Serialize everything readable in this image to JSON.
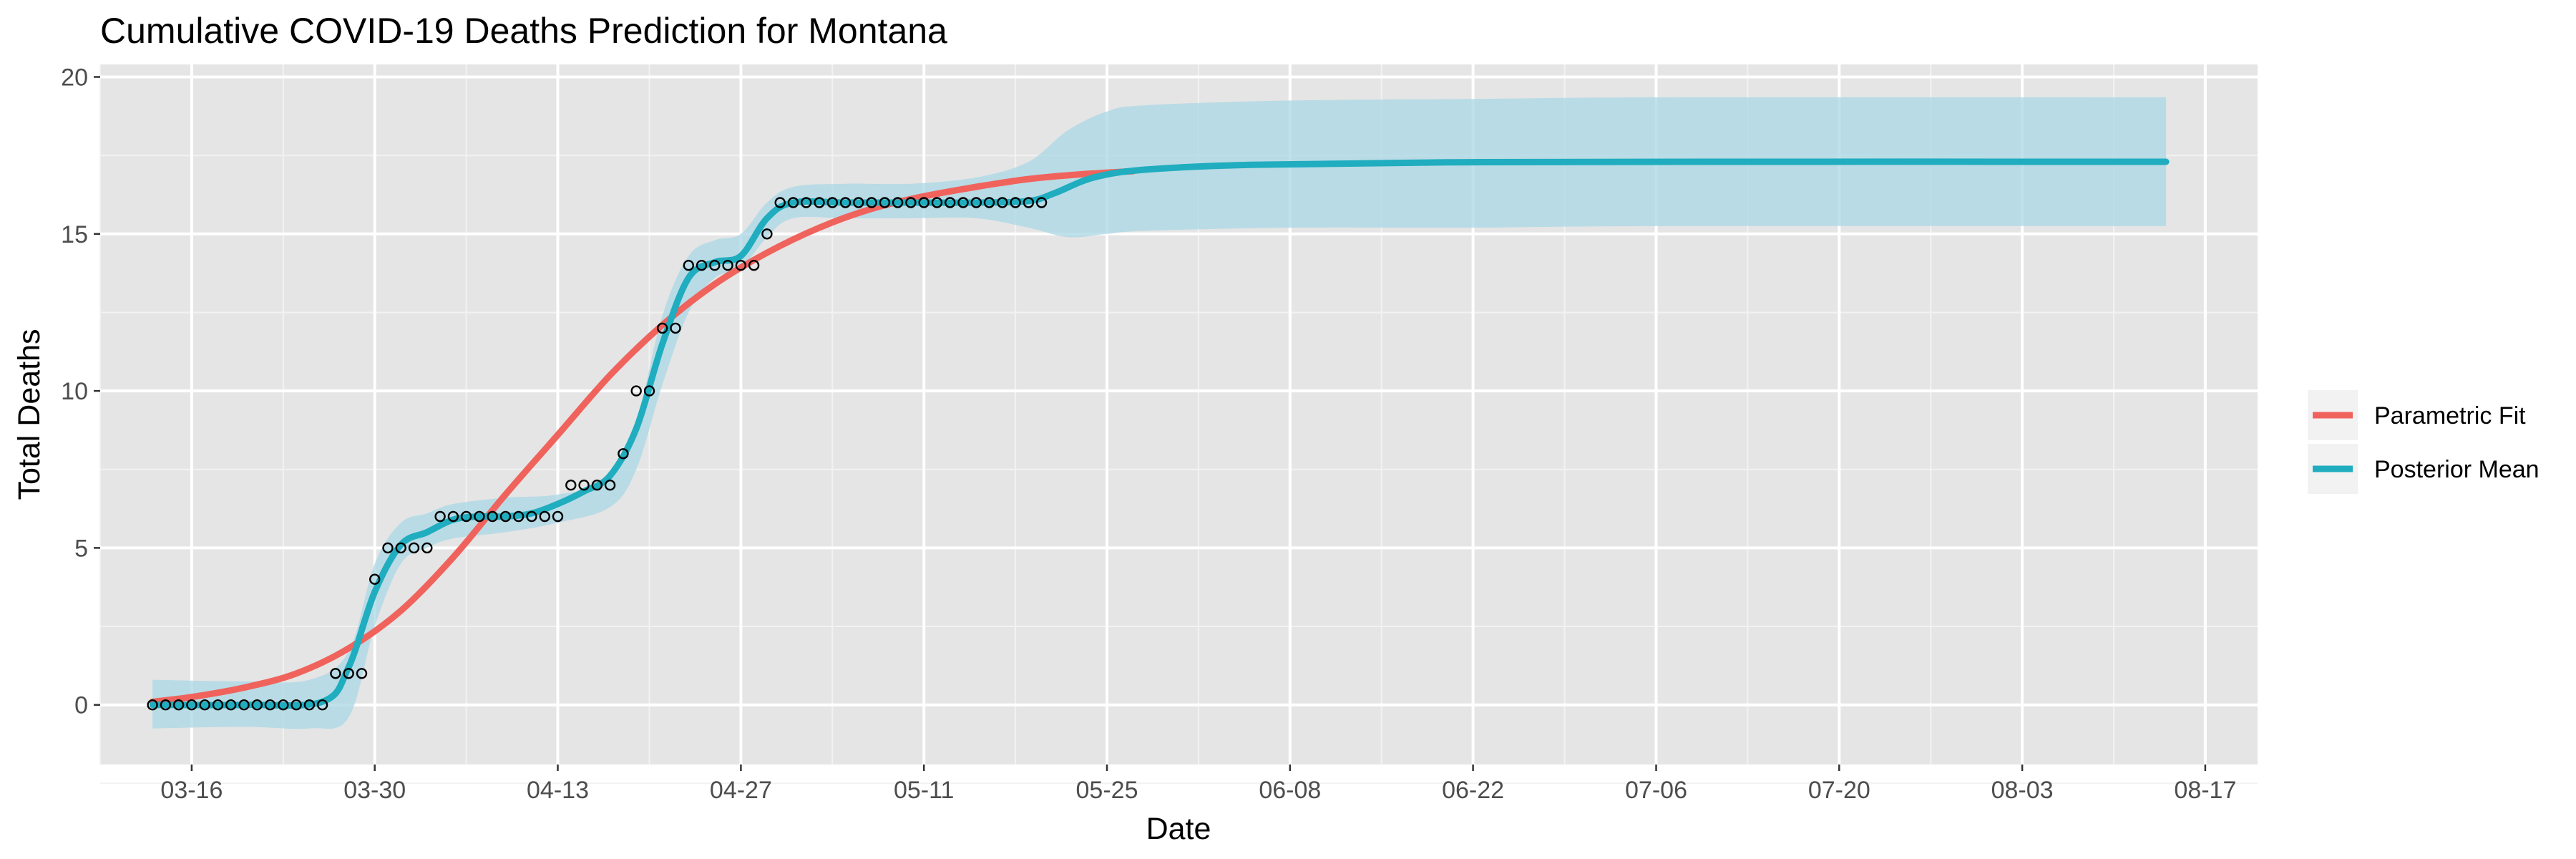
{
  "chart_data": {
    "type": "line",
    "title": "Cumulative COVID-19 Deaths Prediction for Montana",
    "xlabel": "Date",
    "ylabel": "Total Deaths",
    "x_type": "date",
    "x_ticks": [
      "2020-03-16",
      "2020-03-30",
      "2020-04-13",
      "2020-04-27",
      "2020-05-11",
      "2020-05-25",
      "2020-06-08",
      "2020-06-22",
      "2020-07-06",
      "2020-07-20",
      "2020-08-03",
      "2020-08-17"
    ],
    "x_tick_labels": [
      "03-16",
      "03-30",
      "04-13",
      "04-27",
      "05-11",
      "05-25",
      "06-08",
      "06-22",
      "07-06",
      "07-20",
      "08-03",
      "08-17"
    ],
    "xlim": [
      "2020-03-09",
      "2020-08-21"
    ],
    "y_ticks": [
      0,
      5,
      10,
      15,
      20
    ],
    "ylim": [
      -1.9,
      20.4
    ],
    "grid": true,
    "background_color": "#e5e5e5",
    "legend": {
      "position": "right",
      "entries": [
        {
          "label": "Parametric Fit",
          "color": "#f0635c"
        },
        {
          "label": "Posterior Mean",
          "color": "#1fadbf"
        }
      ]
    },
    "observed": {
      "x": [
        "2020-03-13",
        "2020-03-14",
        "2020-03-15",
        "2020-03-16",
        "2020-03-17",
        "2020-03-18",
        "2020-03-19",
        "2020-03-20",
        "2020-03-21",
        "2020-03-22",
        "2020-03-23",
        "2020-03-24",
        "2020-03-25",
        "2020-03-26",
        "2020-03-27",
        "2020-03-28",
        "2020-03-29",
        "2020-03-30",
        "2020-03-31",
        "2020-04-01",
        "2020-04-02",
        "2020-04-03",
        "2020-04-04",
        "2020-04-05",
        "2020-04-06",
        "2020-04-07",
        "2020-04-08",
        "2020-04-09",
        "2020-04-10",
        "2020-04-11",
        "2020-04-12",
        "2020-04-13",
        "2020-04-14",
        "2020-04-15",
        "2020-04-16",
        "2020-04-17",
        "2020-04-18",
        "2020-04-19",
        "2020-04-20",
        "2020-04-21",
        "2020-04-22",
        "2020-04-23",
        "2020-04-24",
        "2020-04-25",
        "2020-04-26",
        "2020-04-27",
        "2020-04-28",
        "2020-04-29",
        "2020-04-30",
        "2020-05-01",
        "2020-05-02",
        "2020-05-03",
        "2020-05-04",
        "2020-05-05",
        "2020-05-06",
        "2020-05-07",
        "2020-05-08",
        "2020-05-09",
        "2020-05-10",
        "2020-05-11",
        "2020-05-12",
        "2020-05-13",
        "2020-05-14",
        "2020-05-15",
        "2020-05-16",
        "2020-05-17",
        "2020-05-18",
        "2020-05-19",
        "2020-05-20"
      ],
      "y": [
        0,
        0,
        0,
        0,
        0,
        0,
        0,
        0,
        0,
        0,
        0,
        0,
        0,
        0,
        1,
        1,
        1,
        4,
        5,
        5,
        5,
        5,
        6,
        6,
        6,
        6,
        6,
        6,
        6,
        6,
        6,
        6,
        7,
        7,
        7,
        7,
        8,
        10,
        10,
        12,
        12,
        14,
        14,
        14,
        14,
        14,
        14,
        15,
        16,
        16,
        16,
        16,
        16,
        16,
        16,
        16,
        16,
        16,
        16,
        16,
        16,
        16,
        16,
        16,
        16,
        16,
        16,
        16,
        16
      ]
    },
    "series": [
      {
        "name": "Parametric Fit",
        "color": "#f0635c",
        "x": [
          "2020-03-13",
          "2020-03-16",
          "2020-03-20",
          "2020-03-24",
          "2020-03-28",
          "2020-04-01",
          "2020-04-05",
          "2020-04-09",
          "2020-04-13",
          "2020-04-17",
          "2020-04-21",
          "2020-04-25",
          "2020-04-29",
          "2020-05-03",
          "2020-05-07",
          "2020-05-11",
          "2020-05-15",
          "2020-05-19",
          "2020-05-23",
          "2020-05-27"
        ],
        "y": [
          0.1,
          0.25,
          0.55,
          1.0,
          1.8,
          3.0,
          4.7,
          6.7,
          8.6,
          10.5,
          12.1,
          13.4,
          14.4,
          15.2,
          15.8,
          16.2,
          16.5,
          16.75,
          16.9,
          17.0
        ]
      },
      {
        "name": "Posterior Mean",
        "color": "#1fadbf",
        "x": [
          "2020-03-13",
          "2020-03-20",
          "2020-03-26",
          "2020-03-28",
          "2020-03-30",
          "2020-04-01",
          "2020-04-03",
          "2020-04-05",
          "2020-04-07",
          "2020-04-09",
          "2020-04-11",
          "2020-04-13",
          "2020-04-15",
          "2020-04-17",
          "2020-04-19",
          "2020-04-21",
          "2020-04-23",
          "2020-04-25",
          "2020-04-27",
          "2020-04-29",
          "2020-05-01",
          "2020-05-05",
          "2020-05-10",
          "2020-05-15",
          "2020-05-19",
          "2020-05-21",
          "2020-05-24",
          "2020-05-28",
          "2020-06-05",
          "2020-06-20",
          "2020-07-10",
          "2020-08-14"
        ],
        "y": [
          0,
          0,
          0.1,
          1.2,
          3.6,
          5.1,
          5.5,
          5.9,
          6.0,
          6.0,
          6.1,
          6.4,
          6.8,
          7.3,
          8.8,
          11.5,
          13.6,
          14.1,
          14.3,
          15.5,
          16.0,
          16.0,
          16.0,
          16.0,
          16.05,
          16.3,
          16.8,
          17.05,
          17.2,
          17.28,
          17.3,
          17.3
        ]
      }
    ],
    "band": {
      "name": "Posterior interval",
      "color": "#add8e6",
      "x": [
        "2020-03-13",
        "2020-03-20",
        "2020-03-25",
        "2020-03-28",
        "2020-03-30",
        "2020-04-01",
        "2020-04-03",
        "2020-04-05",
        "2020-04-09",
        "2020-04-13",
        "2020-04-17",
        "2020-04-19",
        "2020-04-21",
        "2020-04-23",
        "2020-04-25",
        "2020-04-27",
        "2020-04-29",
        "2020-05-01",
        "2020-05-05",
        "2020-05-10",
        "2020-05-15",
        "2020-05-19",
        "2020-05-22",
        "2020-05-25",
        "2020-05-28",
        "2020-06-08",
        "2020-06-22",
        "2020-07-06",
        "2020-08-14"
      ],
      "lower": [
        -0.75,
        -0.7,
        -0.75,
        -0.4,
        2.5,
        4.5,
        5.0,
        5.3,
        5.5,
        5.8,
        6.3,
        7.5,
        10.2,
        12.5,
        13.6,
        13.9,
        14.9,
        15.5,
        15.5,
        15.5,
        15.5,
        15.2,
        14.9,
        15.0,
        15.1,
        15.2,
        15.2,
        15.25,
        15.25
      ],
      "upper": [
        0.8,
        0.75,
        0.8,
        1.7,
        4.5,
        5.8,
        6.1,
        6.4,
        6.6,
        6.7,
        7.2,
        9.0,
        12.4,
        14.3,
        14.8,
        15.0,
        16.0,
        16.5,
        16.6,
        16.6,
        16.8,
        17.3,
        18.3,
        18.9,
        19.1,
        19.25,
        19.3,
        19.35,
        19.35
      ]
    }
  }
}
